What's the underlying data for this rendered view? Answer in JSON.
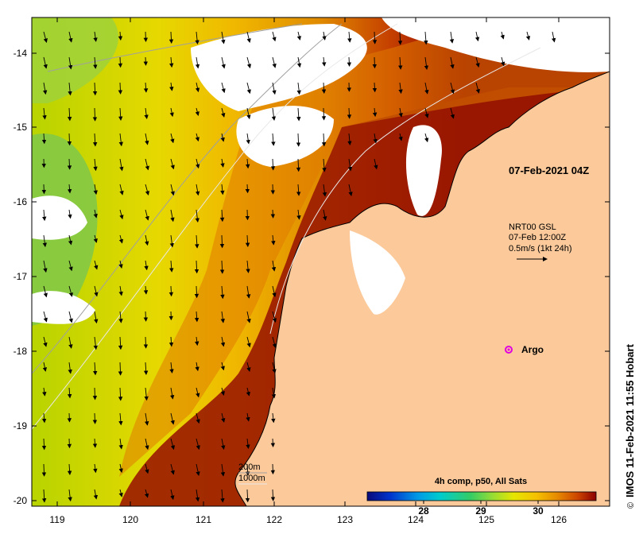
{
  "map": {
    "timestamp_label": "07-Feb-2021 04Z",
    "current_legend": {
      "line1": "NRT00 GSL",
      "line2": "07-Feb 12:00Z",
      "line3": "0.5m/s (1kt 24h)"
    },
    "argo_label": "Argo",
    "depth_contours": {
      "line1": "200m",
      "line2": "1000m"
    },
    "colorbar": {
      "title": "4h comp, p50, All Sats",
      "ticks": [
        "28",
        "29",
        "30"
      ],
      "colors": [
        "#0a0a7a",
        "#0033cc",
        "#0099e6",
        "#00cccc",
        "#33cc66",
        "#99dd33",
        "#e6e600",
        "#f5c000",
        "#e68a00",
        "#cc4400",
        "#8b0000"
      ]
    },
    "credit": "IMOS 11-Feb-2021 11:55 Hobart",
    "copyright_symbol": "©",
    "x_axis": {
      "ticks": [
        "119",
        "120",
        "121",
        "122",
        "123",
        "124",
        "125",
        "126"
      ]
    },
    "y_axis": {
      "ticks": [
        "-14",
        "-15",
        "-16",
        "-17",
        "-18",
        "-19",
        "-20"
      ]
    },
    "colors": {
      "land": "#fbc99a",
      "cloud": "#ffffff",
      "sst_warm": "#8b0000",
      "sst_mid": "#e69a00",
      "sst_cool": "#c8d800",
      "argo": "#e000e0"
    }
  }
}
